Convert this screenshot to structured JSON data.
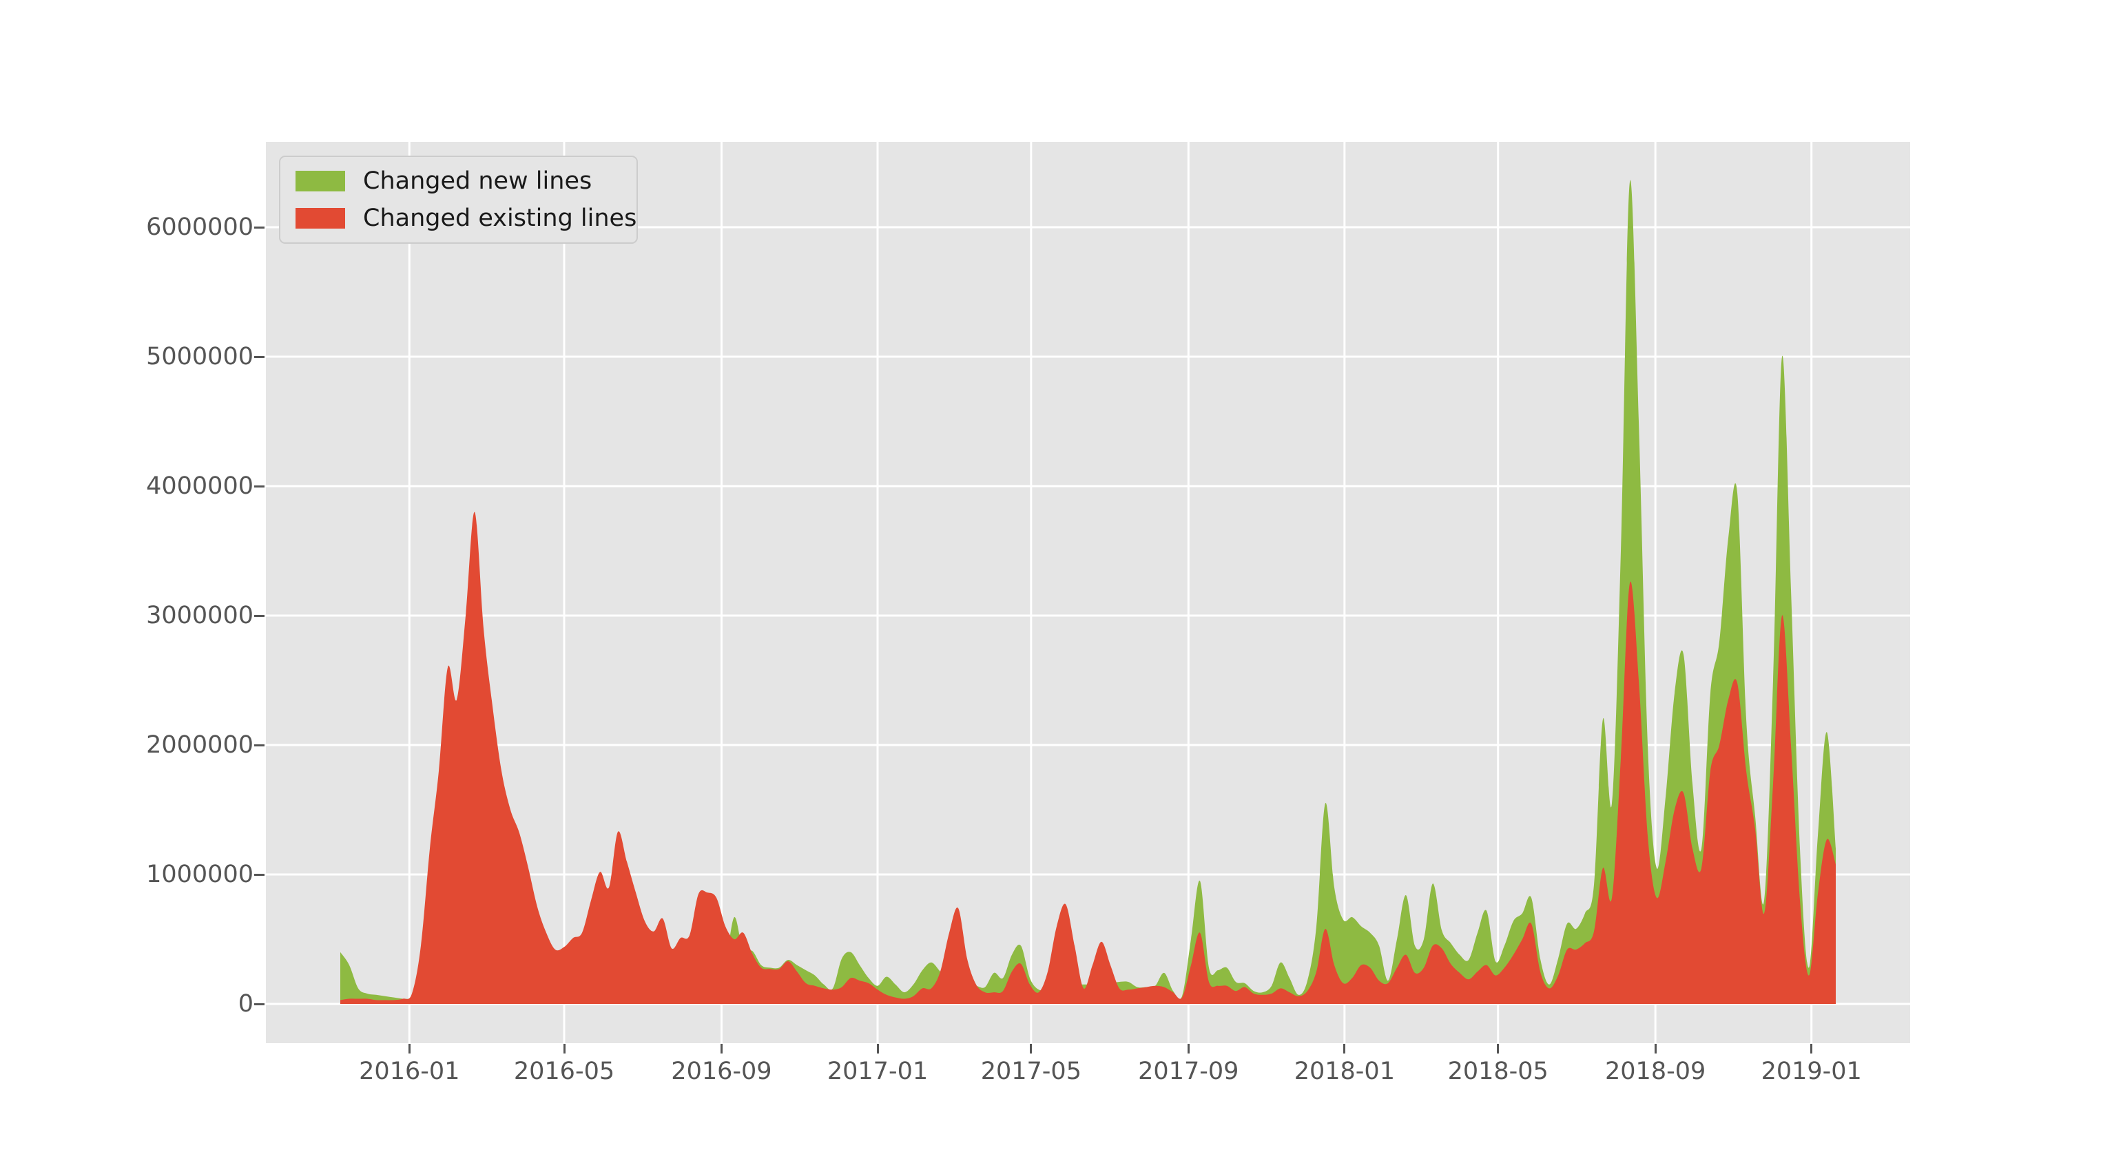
{
  "palette": {
    "figure_background": "#ffffff",
    "axes_background": "#e5e5e5",
    "grid_color": "#ffffff",
    "tick_label_color": "#555555",
    "legend_text_color": "#1a1a1a",
    "legend_border_color": "#cccccc"
  },
  "legend": {
    "position": "upper left",
    "items": [
      {
        "label": "Changed new lines",
        "color": "#8EBA42"
      },
      {
        "label": "Changed existing lines",
        "color": "#E24A33"
      }
    ]
  },
  "y_axis": {
    "tick_values": [
      0,
      1000000,
      2000000,
      3000000,
      4000000,
      5000000,
      6000000
    ],
    "tick_labels": [
      "0",
      "1000000",
      "2000000",
      "3000000",
      "4000000",
      "5000000",
      "6000000"
    ]
  },
  "x_axis": {
    "tick_dates": [
      "2016-01-01",
      "2016-05-01",
      "2016-09-01",
      "2017-01-01",
      "2017-05-01",
      "2017-09-01",
      "2018-01-01",
      "2018-05-01",
      "2018-09-01",
      "2019-01-01"
    ],
    "tick_labels": [
      "2016-01",
      "2016-05",
      "2016-09",
      "2017-01",
      "2017-05",
      "2017-09",
      "2018-01",
      "2018-05",
      "2018-09",
      "2019-01"
    ]
  },
  "chart_data": {
    "type": "area",
    "stacking": "overlay",
    "title": "",
    "xlabel": "",
    "ylabel": "",
    "grid": true,
    "legend_position": "upper left",
    "ylim": [
      -300000,
      6660000
    ],
    "x_start_date": "2015-11-08",
    "x_interval_days": 7,
    "n_points": 168,
    "series": [
      {
        "name": "Changed new lines",
        "color": "#8EBA42",
        "values": [
          400000,
          300000,
          120000,
          80000,
          70000,
          60000,
          50000,
          40000,
          40000,
          50000,
          60000,
          80000,
          100000,
          100000,
          100000,
          120000,
          120000,
          100000,
          100000,
          100000,
          100000,
          100000,
          100000,
          100000,
          100000,
          100000,
          100000,
          100000,
          100000,
          100000,
          100000,
          120000,
          120000,
          120000,
          120000,
          120000,
          120000,
          120000,
          120000,
          120000,
          150000,
          150000,
          150000,
          300000,
          670000,
          400000,
          410000,
          300000,
          280000,
          280000,
          340000,
          300000,
          260000,
          220000,
          150000,
          120000,
          350000,
          400000,
          300000,
          200000,
          140000,
          210000,
          150000,
          90000,
          150000,
          260000,
          320000,
          250000,
          180000,
          150000,
          150000,
          140000,
          130000,
          240000,
          200000,
          380000,
          450000,
          200000,
          110000,
          120000,
          140000,
          150000,
          150000,
          150000,
          150000,
          150000,
          160000,
          170000,
          170000,
          130000,
          130000,
          140000,
          240000,
          100000,
          60000,
          500000,
          950000,
          280000,
          260000,
          280000,
          170000,
          160000,
          100000,
          90000,
          140000,
          320000,
          200000,
          70000,
          180000,
          600000,
          1550000,
          900000,
          650000,
          670000,
          600000,
          550000,
          450000,
          180000,
          500000,
          840000,
          450000,
          500000,
          930000,
          570000,
          470000,
          380000,
          340000,
          550000,
          720000,
          330000,
          450000,
          640000,
          700000,
          820000,
          350000,
          150000,
          350000,
          620000,
          580000,
          700000,
          920000,
          2200000,
          1550000,
          3500000,
          6350000,
          4500000,
          2000000,
          1050000,
          1600000,
          2400000,
          2700000,
          1700000,
          1200000,
          2400000,
          2800000,
          3600000,
          3950000,
          2200000,
          1450000,
          800000,
          2500000,
          5000000,
          3200000,
          1200000,
          280000,
          1300000,
          2100000,
          1200000
        ]
      },
      {
        "name": "Changed existing lines",
        "color": "#E24A33",
        "values": [
          30000,
          40000,
          40000,
          40000,
          30000,
          30000,
          30000,
          40000,
          80000,
          450000,
          1200000,
          1800000,
          2600000,
          2350000,
          3000000,
          3800000,
          2900000,
          2300000,
          1800000,
          1500000,
          1320000,
          1050000,
          750000,
          550000,
          420000,
          440000,
          510000,
          550000,
          800000,
          1020000,
          900000,
          1330000,
          1100000,
          860000,
          640000,
          560000,
          660000,
          430000,
          510000,
          530000,
          850000,
          860000,
          820000,
          600000,
          500000,
          550000,
          390000,
          280000,
          270000,
          270000,
          330000,
          250000,
          160000,
          140000,
          120000,
          110000,
          130000,
          200000,
          180000,
          160000,
          110000,
          70000,
          50000,
          40000,
          60000,
          120000,
          120000,
          250000,
          550000,
          740000,
          350000,
          150000,
          90000,
          90000,
          100000,
          250000,
          310000,
          150000,
          90000,
          250000,
          600000,
          770000,
          450000,
          120000,
          300000,
          480000,
          300000,
          120000,
          110000,
          120000,
          130000,
          140000,
          130000,
          90000,
          50000,
          300000,
          550000,
          170000,
          140000,
          140000,
          100000,
          130000,
          80000,
          70000,
          80000,
          120000,
          90000,
          60000,
          100000,
          250000,
          580000,
          300000,
          160000,
          200000,
          300000,
          280000,
          180000,
          160000,
          280000,
          380000,
          240000,
          280000,
          450000,
          430000,
          310000,
          240000,
          190000,
          250000,
          300000,
          220000,
          280000,
          380000,
          500000,
          620000,
          250000,
          120000,
          220000,
          420000,
          420000,
          470000,
          560000,
          1050000,
          820000,
          1900000,
          3250000,
          2500000,
          1300000,
          820000,
          1100000,
          1500000,
          1630000,
          1200000,
          1050000,
          1800000,
          2000000,
          2350000,
          2480000,
          1800000,
          1350000,
          700000,
          1700000,
          3000000,
          2000000,
          800000,
          220000,
          850000,
          1270000,
          1080000
        ]
      }
    ]
  }
}
